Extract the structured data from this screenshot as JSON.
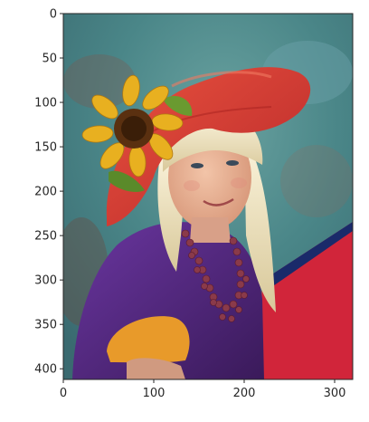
{
  "figure": {
    "image_alt": "girl-with-red-hat-and-sunflower",
    "x_axis": {
      "range": [
        0,
        320
      ],
      "ticks": [
        0,
        100,
        200,
        300
      ],
      "tick_labels": [
        "0",
        "100",
        "200",
        "300"
      ]
    },
    "y_axis": {
      "range": [
        0,
        412
      ],
      "inverted": true,
      "ticks": [
        0,
        50,
        100,
        150,
        200,
        250,
        300,
        350,
        400
      ],
      "tick_labels": [
        "0",
        "50",
        "100",
        "150",
        "200",
        "250",
        "300",
        "350",
        "400"
      ]
    },
    "colors": {
      "background": "#4e8a8c",
      "hat": "#d83a30",
      "sunflower": "#e8b020",
      "hair": "#f0e6c0",
      "skin": "#e8b496",
      "shirt": "#5a2a7e",
      "sleeve_cuff": "#e89a2a",
      "red_panel": "#d1253a",
      "beads": "#8a3a4a"
    }
  }
}
